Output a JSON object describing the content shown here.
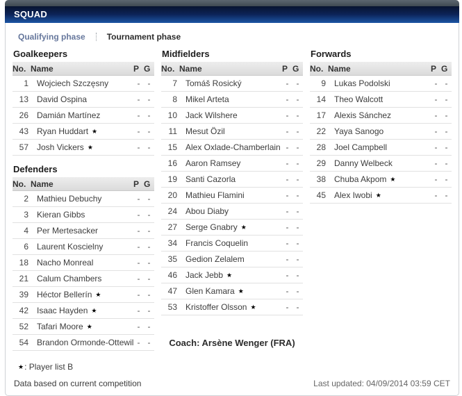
{
  "header": {
    "title": "SQUAD"
  },
  "tabs": [
    {
      "label": "Qualifying phase",
      "active": false
    },
    {
      "label": "Tournament phase",
      "active": true
    }
  ],
  "table_headers": {
    "no": "No.",
    "name": "Name",
    "p": "P",
    "g": "G"
  },
  "sections": {
    "goalkeepers": {
      "title": "Goalkeepers",
      "players": [
        {
          "no": "1",
          "name": "Wojciech Szczęsny",
          "star": false,
          "p": "-",
          "g": "-"
        },
        {
          "no": "13",
          "name": "David Ospina",
          "star": false,
          "p": "-",
          "g": "-"
        },
        {
          "no": "26",
          "name": "Damián Martínez",
          "star": false,
          "p": "-",
          "g": "-"
        },
        {
          "no": "43",
          "name": "Ryan Huddart",
          "star": true,
          "p": "-",
          "g": "-"
        },
        {
          "no": "57",
          "name": "Josh Vickers",
          "star": true,
          "p": "-",
          "g": "-"
        }
      ]
    },
    "defenders": {
      "title": "Defenders",
      "players": [
        {
          "no": "2",
          "name": "Mathieu Debuchy",
          "star": false,
          "p": "-",
          "g": "-"
        },
        {
          "no": "3",
          "name": "Kieran Gibbs",
          "star": false,
          "p": "-",
          "g": "-"
        },
        {
          "no": "4",
          "name": "Per Mertesacker",
          "star": false,
          "p": "-",
          "g": "-"
        },
        {
          "no": "6",
          "name": "Laurent Koscielny",
          "star": false,
          "p": "-",
          "g": "-"
        },
        {
          "no": "18",
          "name": "Nacho Monreal",
          "star": false,
          "p": "-",
          "g": "-"
        },
        {
          "no": "21",
          "name": "Calum Chambers",
          "star": false,
          "p": "-",
          "g": "-"
        },
        {
          "no": "39",
          "name": "Héctor Bellerín",
          "star": true,
          "p": "-",
          "g": "-"
        },
        {
          "no": "42",
          "name": "Isaac Hayden",
          "star": true,
          "p": "-",
          "g": "-"
        },
        {
          "no": "52",
          "name": "Tafari Moore",
          "star": true,
          "p": "-",
          "g": "-"
        },
        {
          "no": "54",
          "name": "Brandon Ormonde-Ottewill",
          "star": true,
          "p": "-",
          "g": "-"
        }
      ]
    },
    "midfielders": {
      "title": "Midfielders",
      "players": [
        {
          "no": "7",
          "name": "Tomáš Rosický",
          "star": false,
          "p": "-",
          "g": "-"
        },
        {
          "no": "8",
          "name": "Mikel Arteta",
          "star": false,
          "p": "-",
          "g": "-"
        },
        {
          "no": "10",
          "name": "Jack Wilshere",
          "star": false,
          "p": "-",
          "g": "-"
        },
        {
          "no": "11",
          "name": "Mesut Özil",
          "star": false,
          "p": "-",
          "g": "-"
        },
        {
          "no": "15",
          "name": "Alex Oxlade-Chamberlain",
          "star": true,
          "p": "-",
          "g": "-"
        },
        {
          "no": "16",
          "name": "Aaron Ramsey",
          "star": false,
          "p": "-",
          "g": "-"
        },
        {
          "no": "19",
          "name": "Santi Cazorla",
          "star": false,
          "p": "-",
          "g": "-"
        },
        {
          "no": "20",
          "name": "Mathieu Flamini",
          "star": false,
          "p": "-",
          "g": "-"
        },
        {
          "no": "24",
          "name": "Abou Diaby",
          "star": false,
          "p": "-",
          "g": "-"
        },
        {
          "no": "27",
          "name": "Serge Gnabry",
          "star": true,
          "p": "-",
          "g": "-"
        },
        {
          "no": "34",
          "name": "Francis Coquelin",
          "star": false,
          "p": "-",
          "g": "-"
        },
        {
          "no": "35",
          "name": "Gedion Zelalem",
          "star": false,
          "p": "-",
          "g": "-"
        },
        {
          "no": "46",
          "name": "Jack Jebb",
          "star": true,
          "p": "-",
          "g": "-"
        },
        {
          "no": "47",
          "name": "Glen Kamara",
          "star": true,
          "p": "-",
          "g": "-"
        },
        {
          "no": "53",
          "name": "Kristoffer Olsson",
          "star": true,
          "p": "-",
          "g": "-"
        }
      ]
    },
    "forwards": {
      "title": "Forwards",
      "players": [
        {
          "no": "9",
          "name": "Lukas Podolski",
          "star": false,
          "p": "-",
          "g": "-"
        },
        {
          "no": "14",
          "name": "Theo Walcott",
          "star": false,
          "p": "-",
          "g": "-"
        },
        {
          "no": "17",
          "name": "Alexis Sánchez",
          "star": false,
          "p": "-",
          "g": "-"
        },
        {
          "no": "22",
          "name": "Yaya Sanogo",
          "star": false,
          "p": "-",
          "g": "-"
        },
        {
          "no": "28",
          "name": "Joel Campbell",
          "star": false,
          "p": "-",
          "g": "-"
        },
        {
          "no": "29",
          "name": "Danny Welbeck",
          "star": false,
          "p": "-",
          "g": "-"
        },
        {
          "no": "38",
          "name": "Chuba Akpom",
          "star": true,
          "p": "-",
          "g": "-"
        },
        {
          "no": "45",
          "name": "Alex Iwobi",
          "star": true,
          "p": "-",
          "g": "-"
        }
      ]
    }
  },
  "coach": {
    "label": "Coach: Arsène Wenger (FRA)"
  },
  "footnote": {
    "symbol": "★",
    "text": ": Player list B"
  },
  "footer": {
    "left": "Data based on current competition",
    "right": "Last updated: 04/09/2014 03:59 CET"
  },
  "colors": {
    "title_bar_top": "#081430",
    "title_bar_bottom": "#1c55a4",
    "top_strip": "#4b5560",
    "tab_link": "#66779c",
    "active_tab_text": "#2b2b2b",
    "panel_border": "#cfd2d6",
    "table_header_bg": "#e6e6e6",
    "row_divider": "#e1e1e1"
  }
}
